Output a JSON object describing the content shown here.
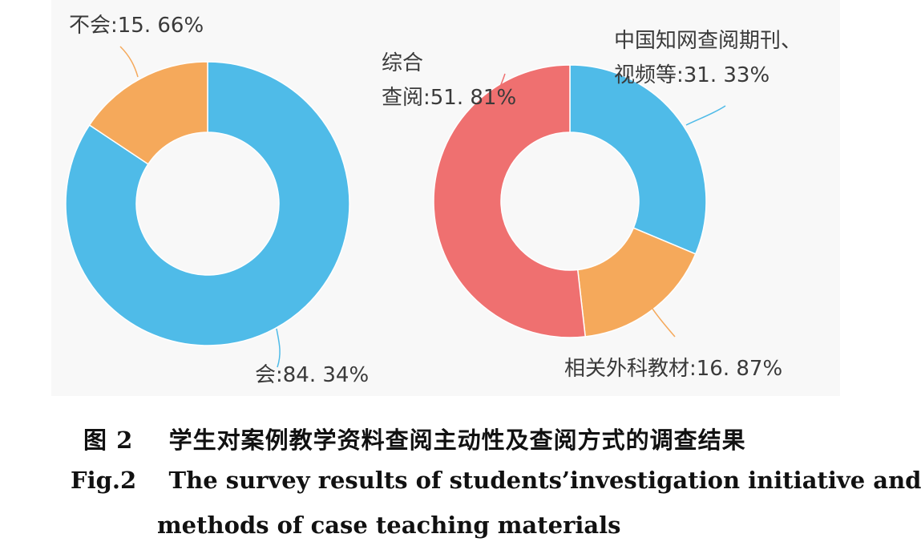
{
  "chart_data": [
    {
      "type": "pie",
      "donut": true,
      "slices": [
        {
          "label": "会",
          "value": 84.34,
          "text": "会:84. 34%",
          "color": "#4fbbe8"
        },
        {
          "label": "不会",
          "value": 15.66,
          "text": "不会:15. 66%",
          "color": "#f5a95b"
        }
      ]
    },
    {
      "type": "pie",
      "donut": true,
      "slices": [
        {
          "label": "中国知网查阅期刊、视频等",
          "value": 31.33,
          "text_lines": [
            "中国知网查阅期刊、",
            "视频等:31. 33%"
          ],
          "color": "#4fbbe8"
        },
        {
          "label": "相关外科教材",
          "value": 16.87,
          "text_lines": [
            "相关外科教材:16. 87%"
          ],
          "color": "#f5a95b"
        },
        {
          "label": "综合查阅",
          "value": 51.81,
          "text_lines": [
            "综合",
            "查阅:51. 81%"
          ],
          "color": "#ef7070"
        }
      ]
    }
  ],
  "caption": {
    "cn": "图 2    学生对案例教学资料查阅主动性及查阅方式的调查结果",
    "en_line1": "Fig.2    The survey results of students’investigation initiative and",
    "en_line2": "methods of case teaching materials"
  }
}
